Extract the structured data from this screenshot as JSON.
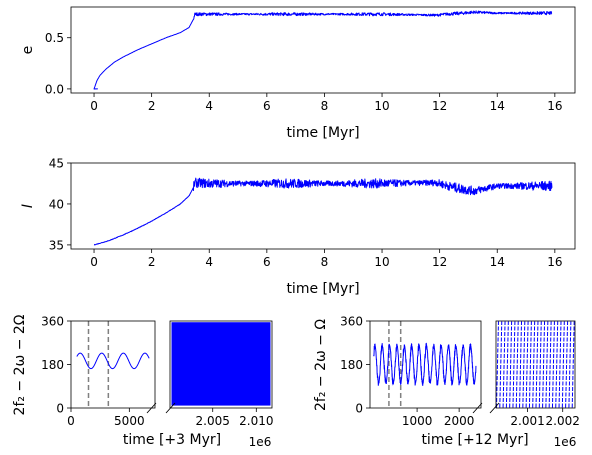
{
  "colors": {
    "series": "#0000ff",
    "marker": "#808080"
  },
  "chart_data": [
    {
      "id": "ecc",
      "type": "line",
      "xlabel": "time [Myr]",
      "ylabel": "e",
      "xlim": [
        -0.8,
        16.7
      ],
      "ylim": [
        -0.04,
        0.8
      ],
      "xticks": [
        0,
        2,
        4,
        6,
        8,
        10,
        12,
        14,
        16
      ],
      "xtick_labels": [
        "0",
        "2",
        "4",
        "6",
        "8",
        "10",
        "12",
        "14",
        "16"
      ],
      "yticks": [
        0.0,
        0.5
      ],
      "ytick_labels": [
        "0.0",
        "0.5"
      ],
      "series": [
        {
          "x": [
            0.0,
            0.1,
            0.2,
            0.4,
            0.7,
            1.0,
            1.5,
            2.0,
            2.5,
            3.0,
            3.3,
            3.45,
            3.5,
            4,
            6,
            8,
            10,
            11.9,
            12.2,
            12.8,
            13.2,
            14,
            15,
            15.9
          ],
          "y": [
            0.0,
            0.08,
            0.13,
            0.19,
            0.26,
            0.31,
            0.38,
            0.44,
            0.5,
            0.55,
            0.6,
            0.68,
            0.73,
            0.73,
            0.73,
            0.73,
            0.73,
            0.72,
            0.73,
            0.74,
            0.75,
            0.74,
            0.74,
            0.74
          ],
          "noise": 0.012
        }
      ]
    },
    {
      "id": "incl",
      "type": "line",
      "xlabel": "time [Myr]",
      "ylabel": "I",
      "xlim": [
        -0.8,
        16.7
      ],
      "ylim": [
        34.5,
        45
      ],
      "xticks": [
        0,
        2,
        4,
        6,
        8,
        10,
        12,
        14,
        16
      ],
      "xtick_labels": [
        "0",
        "2",
        "4",
        "6",
        "8",
        "10",
        "12",
        "14",
        "16"
      ],
      "yticks": [
        35,
        40,
        45
      ],
      "ytick_labels": [
        "35",
        "40",
        "45"
      ],
      "series": [
        {
          "x": [
            0.0,
            0.5,
            1.0,
            1.5,
            2.0,
            2.5,
            3.0,
            3.3,
            3.45,
            3.5,
            4,
            6,
            8,
            10,
            11.9,
            12.3,
            12.8,
            13.2,
            14,
            15,
            15.9
          ],
          "y": [
            35.0,
            35.5,
            36.2,
            37.0,
            37.9,
            38.9,
            40.0,
            41.0,
            42.0,
            42.6,
            42.5,
            42.5,
            42.5,
            42.5,
            42.6,
            42.2,
            41.8,
            41.6,
            42.2,
            42.2,
            42.2
          ],
          "noise": 0.45
        }
      ]
    },
    {
      "id": "res1-left",
      "type": "line",
      "xlabel": "time [+3 Myr]",
      "ylabel": "2f₂ − 2ω − 2Ω",
      "xlim": [
        0,
        7200
      ],
      "ylim": [
        0,
        360
      ],
      "xticks": [
        0,
        5000
      ],
      "xtick_labels": [
        "0",
        "5000"
      ],
      "yticks": [
        0,
        180,
        360
      ],
      "ytick_labels": [
        "0",
        "180",
        "360"
      ],
      "vlines": [
        1500,
        3200
      ],
      "series": [
        {
          "center": 195,
          "amp": 32,
          "period": 1850,
          "x_start": 500,
          "x_end": 6700
        }
      ]
    },
    {
      "id": "res1-right",
      "type": "line",
      "xlim": [
        2000100,
        2011800
      ],
      "ylim": [
        0,
        360
      ],
      "xticks": [
        2005000,
        2010000
      ],
      "xtick_labels": [
        "2.005",
        "2.010"
      ],
      "offset_text": "1e6",
      "series": [
        {
          "mode": "fill",
          "y_min": 10,
          "y_max": 355
        }
      ]
    },
    {
      "id": "res2-left",
      "type": "line",
      "xlabel": "time [+12 Myr]",
      "ylabel": "2f₂ − 2ω − Ω",
      "xlim": [
        -120,
        2520
      ],
      "ylim": [
        0,
        360
      ],
      "xticks": [
        1000,
        2000
      ],
      "xtick_labels": [
        "1000",
        "2000"
      ],
      "yticks": [
        0,
        180,
        360
      ],
      "ytick_labels": [
        "0",
        "180",
        "360"
      ],
      "vlines": [
        330,
        610
      ],
      "series": [
        {
          "center": 180,
          "amp": 78,
          "period": 175,
          "x_start": -30,
          "x_end": 2400,
          "noise": 18
        }
      ]
    },
    {
      "id": "res2-right",
      "type": "line",
      "xlim": [
        2000100,
        2002350
      ],
      "ylim": [
        0,
        360
      ],
      "xticks": [
        2001000,
        2002000
      ],
      "xtick_labels": [
        "2.001",
        "2.002"
      ],
      "offset_text": "1e6",
      "series": [
        {
          "mode": "circulate",
          "y_min": 0,
          "y_max": 360,
          "count": 24
        }
      ]
    }
  ]
}
